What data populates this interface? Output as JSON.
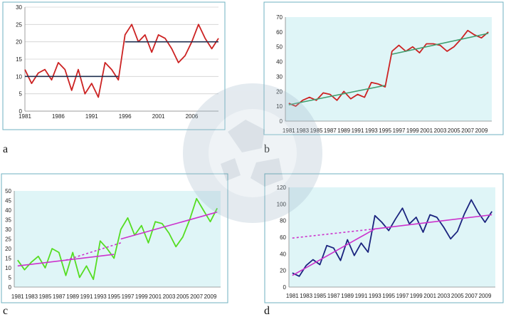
{
  "chart_data": [
    {
      "panel": "a",
      "type": "line",
      "x": [
        1981,
        1982,
        1983,
        1984,
        1985,
        1986,
        1987,
        1988,
        1989,
        1990,
        1991,
        1992,
        1993,
        1994,
        1995,
        1996,
        1997,
        1998,
        1999,
        2000,
        2001,
        2002,
        2003,
        2004,
        2005,
        2006,
        2007,
        2008,
        2009,
        2010
      ],
      "series": [
        {
          "role": "observed",
          "color": "#cc2222",
          "values": [
            12,
            8,
            11,
            12,
            9,
            14,
            12,
            6,
            12,
            5,
            8,
            4,
            14,
            12,
            9,
            22,
            25,
            20,
            22,
            17,
            22,
            21,
            18,
            14,
            16,
            20,
            25,
            21,
            18,
            21
          ]
        },
        {
          "role": "fit-1981-1995",
          "color": "#1f2f4f",
          "x": [
            1981,
            1995
          ],
          "values": [
            10,
            10
          ]
        },
        {
          "role": "fit-1996-2010",
          "color": "#1f2f4f",
          "x": [
            1996,
            2010
          ],
          "values": [
            20,
            20
          ]
        }
      ],
      "ylim": [
        0,
        30
      ],
      "yticks": [
        0,
        5,
        10,
        15,
        20,
        25,
        30
      ],
      "xticks": [
        "1981",
        "1986",
        "1991",
        "1996",
        "2001",
        "2006"
      ],
      "grid": true,
      "plot_bg": "#ffffff"
    },
    {
      "panel": "b",
      "type": "line",
      "x": [
        1981,
        1982,
        1983,
        1984,
        1985,
        1986,
        1987,
        1988,
        1989,
        1990,
        1991,
        1992,
        1993,
        1994,
        1995,
        1996,
        1997,
        1998,
        1999,
        2000,
        2001,
        2002,
        2003,
        2004,
        2005,
        2006,
        2007,
        2008,
        2009,
        2010
      ],
      "series": [
        {
          "role": "observed",
          "color": "#cc2222",
          "values": [
            12,
            10,
            14,
            16,
            14,
            19,
            18,
            14,
            20,
            15,
            18,
            16,
            26,
            25,
            23,
            47,
            51,
            47,
            50,
            46,
            52,
            52,
            51,
            47,
            50,
            55,
            61,
            58,
            56,
            60
          ]
        },
        {
          "role": "trend-1981-1995",
          "color": "#3f9f6f",
          "x": [
            1981,
            1995
          ],
          "values": [
            11,
            24
          ]
        },
        {
          "role": "trend-1996-2010",
          "color": "#3f9f6f",
          "x": [
            1996,
            2010
          ],
          "values": [
            45,
            59
          ]
        }
      ],
      "ylim": [
        0,
        70
      ],
      "yticks": [
        0,
        10,
        20,
        30,
        40,
        50,
        60,
        70
      ],
      "xticks": [
        "1981",
        "1983",
        "1985",
        "1987",
        "1989",
        "1991",
        "1993",
        "1995",
        "1997",
        "1999",
        "2001",
        "2003",
        "2005",
        "2007",
        "2009"
      ],
      "grid": false,
      "plot_bg": "#dff5f7"
    },
    {
      "panel": "c",
      "type": "line",
      "x": [
        1981,
        1982,
        1983,
        1984,
        1985,
        1986,
        1987,
        1988,
        1989,
        1990,
        1991,
        1992,
        1993,
        1994,
        1995,
        1996,
        1997,
        1998,
        1999,
        2000,
        2001,
        2002,
        2003,
        2004,
        2005,
        2006,
        2007,
        2008,
        2009,
        2010
      ],
      "series": [
        {
          "role": "observed",
          "color": "#55dd22",
          "values": [
            14,
            9,
            13,
            16,
            10,
            20,
            18,
            6,
            18,
            5,
            11,
            4,
            24,
            20,
            15,
            30,
            36,
            27,
            32,
            23,
            34,
            33,
            28,
            21,
            26,
            35,
            46,
            40,
            34,
            41
          ]
        },
        {
          "role": "trend-1981-1995",
          "color": "#cc33cc",
          "x": [
            1981,
            1995
          ],
          "values": [
            11,
            17
          ]
        },
        {
          "role": "trend-1996-2010",
          "color": "#cc33cc",
          "x": [
            1996,
            2010
          ],
          "values": [
            25,
            39
          ]
        },
        {
          "role": "trend-extension",
          "color": "#cc33cc",
          "dashed": true,
          "x": [
            1988,
            1996
          ],
          "values": [
            14,
            23
          ]
        }
      ],
      "ylim": [
        0,
        50
      ],
      "yticks": [
        0,
        5,
        10,
        15,
        20,
        25,
        30,
        35,
        40,
        45,
        50
      ],
      "xticks": [
        "1981",
        "1983",
        "1985",
        "1987",
        "1989",
        "1991",
        "1993",
        "1995",
        "1997",
        "1999",
        "2001",
        "2003",
        "2005",
        "2007",
        "2009"
      ],
      "grid": false,
      "plot_bg": "#dff5f7"
    },
    {
      "panel": "d",
      "type": "line",
      "x": [
        1981,
        1982,
        1983,
        1984,
        1985,
        1986,
        1987,
        1988,
        1989,
        1990,
        1991,
        1992,
        1993,
        1994,
        1995,
        1996,
        1997,
        1998,
        1999,
        2000,
        2001,
        2002,
        2003,
        2004,
        2005,
        2006,
        2007,
        2008,
        2009,
        2010
      ],
      "series": [
        {
          "role": "observed",
          "color": "#1a237e",
          "values": [
            17,
            13,
            26,
            33,
            27,
            50,
            47,
            32,
            57,
            38,
            53,
            42,
            86,
            78,
            68,
            82,
            95,
            76,
            84,
            66,
            87,
            84,
            72,
            58,
            67,
            88,
            105,
            90,
            78,
            91
          ]
        },
        {
          "role": "trend-1981-1993",
          "color": "#cc33cc",
          "x": [
            1981,
            1993
          ],
          "values": [
            14,
            70
          ]
        },
        {
          "role": "trend-1993-2010",
          "color": "#cc33cc",
          "x": [
            1993,
            2010
          ],
          "values": [
            70,
            87
          ]
        },
        {
          "role": "trend-extension",
          "color": "#cc33cc",
          "dashed": true,
          "x": [
            1981,
            1993
          ],
          "values": [
            59,
            70
          ]
        }
      ],
      "ylim": [
        0,
        120
      ],
      "yticks": [
        0,
        20,
        40,
        60,
        80,
        100,
        120
      ],
      "xticks": [
        "1981",
        "1983",
        "1985",
        "1987",
        "1989",
        "1991",
        "1993",
        "1995",
        "1997",
        "1999",
        "2001",
        "2003",
        "2005",
        "2007",
        "2009"
      ],
      "grid": false,
      "plot_bg": "#dff5f7"
    }
  ],
  "labels": {
    "a": "a",
    "b": "b",
    "c": "c",
    "d": "d"
  }
}
